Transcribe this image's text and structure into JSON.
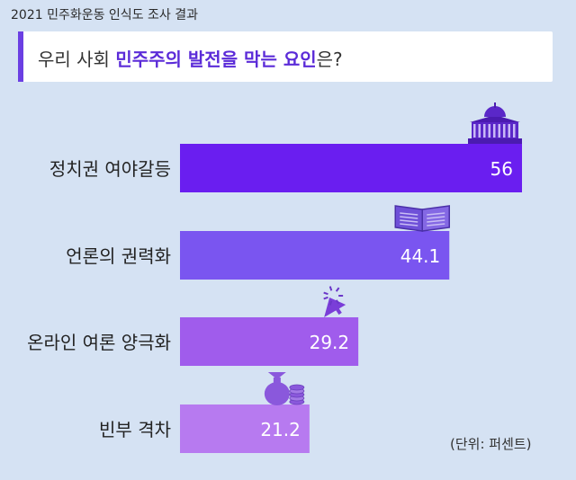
{
  "header": {
    "survey_title": "2021 민주화운동 인식도 조사 결과",
    "question_prefix": "우리 사회 ",
    "question_highlight": "민주주의 발전을 막는 요인",
    "question_suffix": "은?"
  },
  "chart_data": {
    "type": "bar",
    "orientation": "horizontal",
    "categories": [
      "정치권 여야갈등",
      "언론의 권력화",
      "온라인 여론 양극화",
      "빈부 격차"
    ],
    "values": [
      56,
      44.1,
      29.2,
      21.2
    ],
    "value_labels": [
      "56",
      "44.1",
      "29.2",
      "21.2"
    ],
    "bar_colors": [
      "#6a1ef0",
      "#7a55f0",
      "#a05cec",
      "#b77af0"
    ],
    "icons": [
      "parliament-icon",
      "newspaper-icon",
      "cursor-icon",
      "money-bag-icon"
    ],
    "unit_label": "(단위: 퍼센트)"
  }
}
